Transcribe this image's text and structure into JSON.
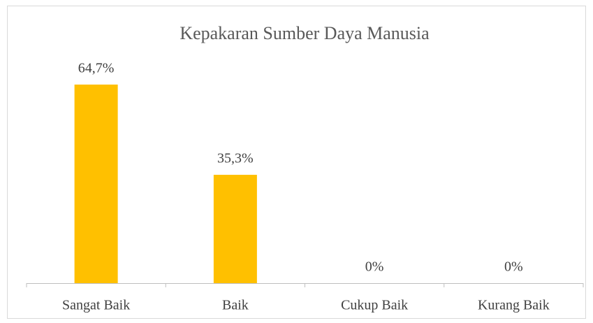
{
  "chart_data": {
    "type": "bar",
    "title": "Kepakaran Sumber Daya Manusia",
    "categories": [
      "Sangat Baik",
      "Baik",
      "Cukup Baik",
      "Kurang Baik"
    ],
    "values": [
      64.7,
      35.3,
      0,
      0
    ],
    "value_labels": [
      "64,7%",
      "35,3%",
      "0%",
      "0%"
    ],
    "color": "#FFC000"
  }
}
